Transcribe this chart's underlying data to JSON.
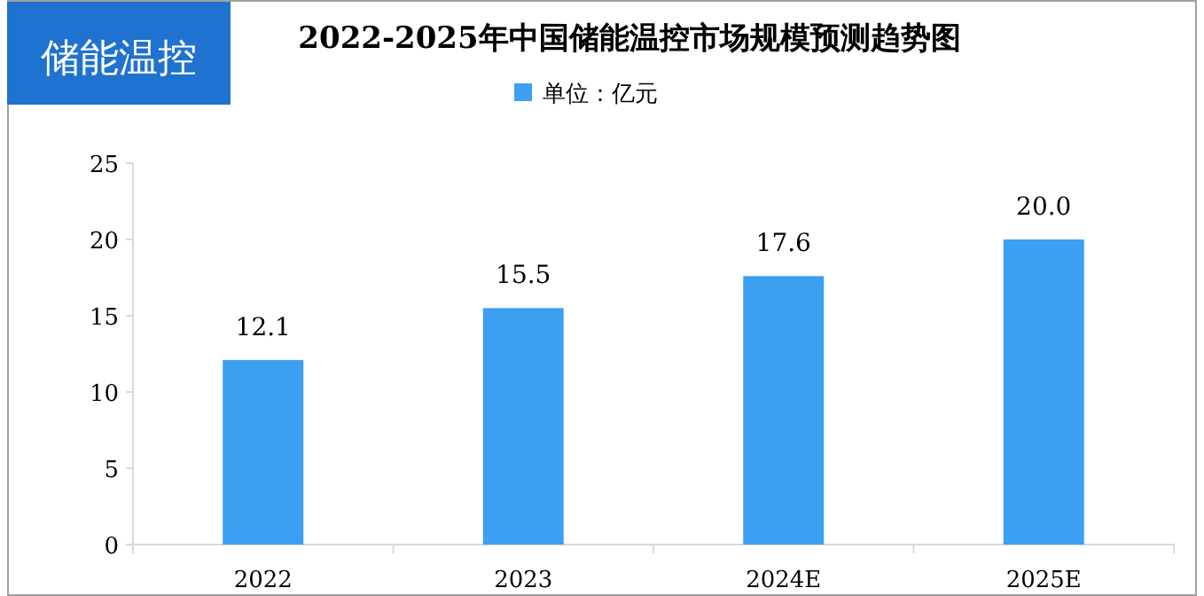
{
  "chart_data": {
    "type": "bar",
    "title": "2022-2025年中国储能温控市场规模预测趋势图",
    "annotations": [
      "储能温控"
    ],
    "categories": [
      "2022",
      "2023",
      "2024E",
      "2025E"
    ],
    "series": [
      {
        "name": "单位：亿元",
        "color": "#3d9ff2",
        "values": [
          12.1,
          15.5,
          17.6,
          20.0
        ],
        "value_labels": [
          "12.1",
          "15.5",
          "17.6",
          "20.0"
        ]
      }
    ],
    "ylim": [
      0,
      25
    ],
    "yticks": [
      0,
      5,
      10,
      15,
      20,
      25
    ],
    "legend": "top"
  }
}
